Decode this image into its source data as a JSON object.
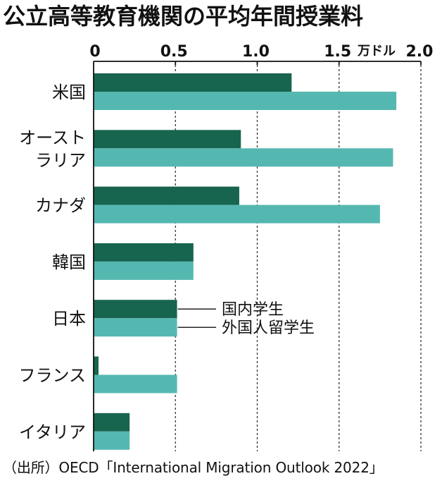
{
  "title": "公立高等教育機関の平均年間授業料",
  "source": "（出所）OECD「International Migration Outlook 2022」",
  "chart_data": {
    "type": "bar",
    "orientation": "horizontal",
    "unit": "万ドル",
    "x_ticks": [
      "0",
      "0.5",
      "1.0",
      "1.5",
      "2.0"
    ],
    "xlim": [
      0,
      2.0
    ],
    "grid": true,
    "categories": [
      "米国",
      "オーストラリア",
      "カナダ",
      "韓国",
      "日本",
      "フランス",
      "イタリア"
    ],
    "category_label_lines": [
      [
        "米国"
      ],
      [
        "オースト",
        "ラリア"
      ],
      [
        "カナダ"
      ],
      [
        "韓国"
      ],
      [
        "日本"
      ],
      [
        "フランス"
      ],
      [
        "イタリア"
      ]
    ],
    "series": [
      {
        "name": "国内学生",
        "color": "#17644f",
        "values": [
          1.21,
          0.9,
          0.89,
          0.61,
          0.51,
          0.03,
          0.22
        ]
      },
      {
        "name": "外国人留学生",
        "color": "#55b8b0",
        "values": [
          1.85,
          1.83,
          1.75,
          0.61,
          0.51,
          0.51,
          0.22
        ]
      }
    ],
    "legend_placement": "inline-right"
  }
}
